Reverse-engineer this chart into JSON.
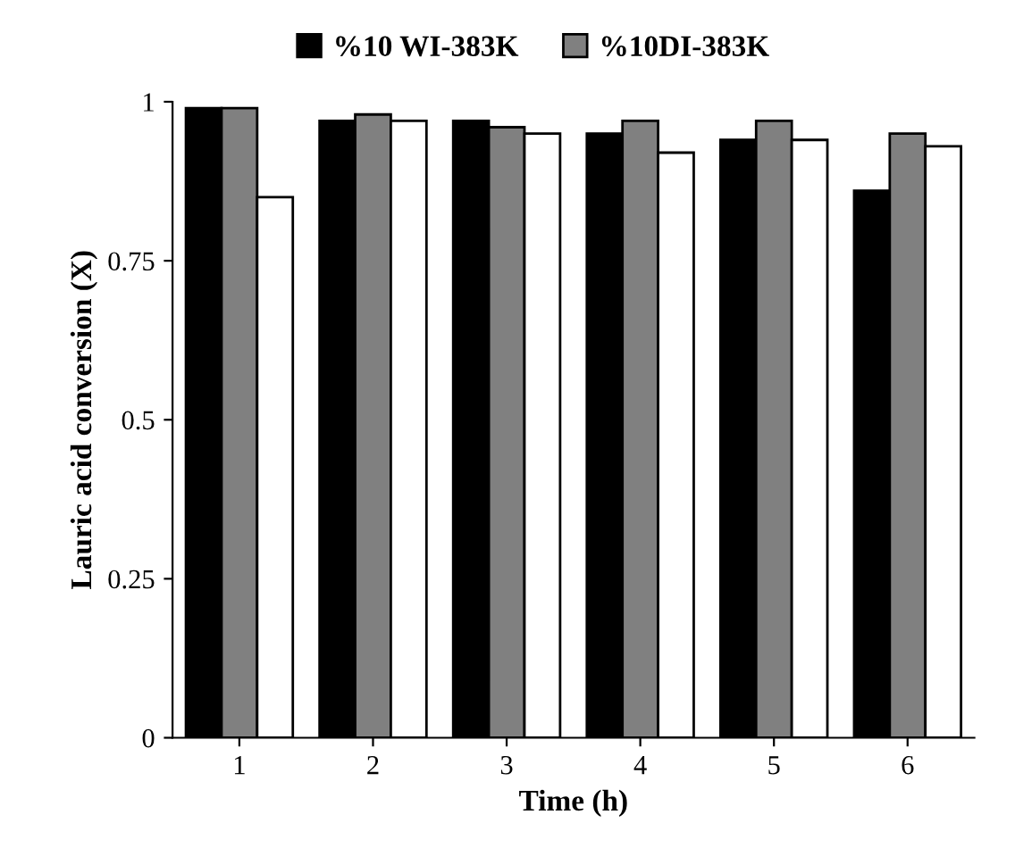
{
  "chart_data": {
    "type": "bar",
    "xlabel": "Time (h)",
    "ylabel": "Lauric acid conversion (X)",
    "categories": [
      "1",
      "2",
      "3",
      "4",
      "5",
      "6"
    ],
    "series": [
      {
        "name": "%10 WI-383K",
        "color": "#000000",
        "values": [
          0.99,
          0.97,
          0.97,
          0.95,
          0.94,
          0.86
        ]
      },
      {
        "name": "%10DI-383K",
        "color": "#808080",
        "values": [
          0.99,
          0.98,
          0.96,
          0.97,
          0.97,
          0.95
        ]
      },
      {
        "color": "#ffffff",
        "values": [
          0.85,
          0.97,
          0.95,
          0.92,
          0.94,
          0.93
        ]
      }
    ],
    "ylim": [
      0,
      1
    ],
    "yticks": [
      0,
      {
        "value": 0.25,
        "label": "0.25"
      },
      {
        "value": 0.5,
        "label": "0.5"
      },
      {
        "value": 0.75,
        "label": "0.75"
      },
      1
    ],
    "grid": false,
    "legend": "top"
  }
}
